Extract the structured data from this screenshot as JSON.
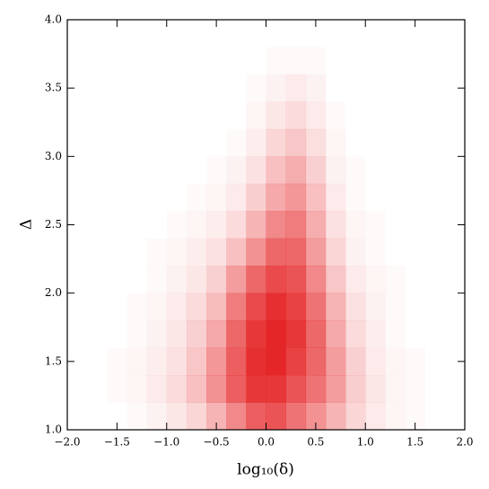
{
  "chart_data": {
    "type": "heatmap",
    "x_label": "log₁₀(δ)",
    "y_label": "Δ",
    "color": "#e41a1c",
    "xlim": [
      -2,
      2
    ],
    "ylim": [
      1,
      4
    ],
    "xticks": [
      {
        "value": -2,
        "label": "−2.0"
      },
      {
        "value": -1.5,
        "label": "−1.5"
      },
      {
        "value": -1,
        "label": "−1.0"
      },
      {
        "value": -0.5,
        "label": "−0.5"
      },
      {
        "value": 0,
        "label": "0.0"
      },
      {
        "value": 0.5,
        "label": "0.5"
      },
      {
        "value": 1,
        "label": "1.0"
      },
      {
        "value": 1.5,
        "label": "1.5"
      },
      {
        "value": 2,
        "label": "2.0"
      }
    ],
    "yticks": [
      {
        "value": 1,
        "label": "1.0"
      },
      {
        "value": 1.5,
        "label": "1.5"
      },
      {
        "value": 2,
        "label": "2.0"
      },
      {
        "value": 2.5,
        "label": "2.5"
      },
      {
        "value": 3,
        "label": "3.0"
      },
      {
        "value": 3.5,
        "label": "3.5"
      },
      {
        "value": 4,
        "label": "4.0"
      }
    ],
    "x_bins": [
      -2,
      -1.8,
      -1.6,
      -1.4,
      -1.2,
      -1,
      -0.8,
      -0.6,
      -0.4,
      -0.2,
      0,
      0.2,
      0.4,
      0.6,
      0.8,
      1,
      1.2,
      1.4,
      1.6,
      1.8,
      2
    ],
    "y_bins": [
      1,
      1.2,
      1.4,
      1.6,
      1.8,
      2,
      2.2,
      2.4,
      2.6,
      2.8,
      3,
      3.2,
      3.4,
      3.6,
      3.8,
      4
    ],
    "values": [
      [
        0,
        0,
        0,
        1,
        3,
        6,
        12,
        25,
        45,
        65,
        70,
        55,
        40,
        25,
        12,
        5,
        2,
        1,
        0,
        0
      ],
      [
        0,
        0,
        1,
        2,
        5,
        10,
        20,
        40,
        65,
        85,
        85,
        70,
        55,
        35,
        15,
        6,
        2,
        1,
        0,
        0
      ],
      [
        0,
        0,
        1,
        2,
        4,
        8,
        18,
        38,
        65,
        90,
        95,
        80,
        60,
        35,
        14,
        5,
        2,
        1,
        0,
        0
      ],
      [
        0,
        0,
        0,
        1,
        3,
        6,
        14,
        30,
        60,
        85,
        95,
        85,
        60,
        30,
        10,
        4,
        1,
        0,
        0,
        0
      ],
      [
        0,
        0,
        0,
        1,
        2,
        5,
        10,
        22,
        50,
        75,
        90,
        80,
        55,
        25,
        8,
        3,
        1,
        0,
        0,
        0
      ],
      [
        0,
        0,
        0,
        0,
        1,
        3,
        6,
        14,
        35,
        60,
        75,
        70,
        45,
        18,
        5,
        2,
        1,
        0,
        0,
        0
      ],
      [
        0,
        0,
        0,
        0,
        1,
        2,
        4,
        8,
        20,
        40,
        60,
        60,
        35,
        12,
        3,
        1,
        0,
        0,
        0,
        0
      ],
      [
        0,
        0,
        0,
        0,
        0,
        1,
        2,
        4,
        10,
        25,
        45,
        50,
        28,
        8,
        2,
        1,
        0,
        0,
        0,
        0
      ],
      [
        0,
        0,
        0,
        0,
        0,
        0,
        1,
        2,
        5,
        15,
        30,
        38,
        20,
        5,
        1,
        0,
        0,
        0,
        0,
        0
      ],
      [
        0,
        0,
        0,
        0,
        0,
        0,
        0,
        1,
        3,
        8,
        20,
        28,
        14,
        3,
        1,
        0,
        0,
        0,
        0,
        0
      ],
      [
        0,
        0,
        0,
        0,
        0,
        0,
        0,
        0,
        1,
        4,
        12,
        18,
        9,
        2,
        0,
        0,
        0,
        0,
        0,
        0
      ],
      [
        0,
        0,
        0,
        0,
        0,
        0,
        0,
        0,
        0,
        2,
        6,
        10,
        5,
        1,
        0,
        0,
        0,
        0,
        0,
        0
      ],
      [
        0,
        0,
        0,
        0,
        0,
        0,
        0,
        0,
        0,
        1,
        3,
        5,
        3,
        0,
        0,
        0,
        0,
        0,
        0,
        0
      ],
      [
        0,
        0,
        0,
        0,
        0,
        0,
        0,
        0,
        0,
        0,
        1,
        1,
        1,
        0,
        0,
        0,
        0,
        0,
        0,
        0
      ],
      [
        0,
        0,
        0,
        0,
        0,
        0,
        0,
        0,
        0,
        0,
        0,
        0,
        0,
        0,
        0,
        0,
        0,
        0,
        0,
        0
      ]
    ]
  }
}
